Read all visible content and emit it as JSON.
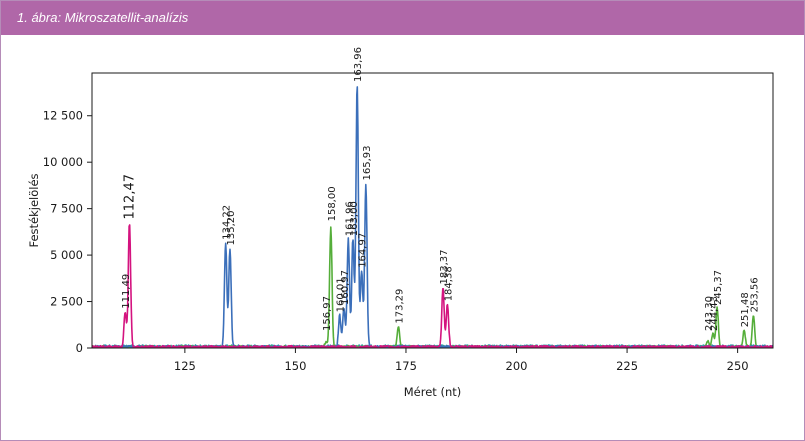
{
  "header": {
    "title": "1. ábra:  Mikroszatellit-analízis"
  },
  "colors": {
    "header_bg": "#b067a8",
    "blue": "#3b6fba",
    "green": "#55ae3a",
    "magenta": "#d4137f",
    "teal": "#2aa0a8"
  },
  "chart_data": {
    "type": "line",
    "xlabel": "Méret (nt)",
    "ylabel": "Festékjelölés",
    "xlim": [
      104,
      258
    ],
    "ylim": [
      0,
      14800
    ],
    "x_ticks": [
      125,
      150,
      175,
      200,
      225,
      250
    ],
    "x_tick_labels": [
      "125",
      "150",
      "175",
      "200",
      "225",
      "250"
    ],
    "y_ticks": [
      0,
      2500,
      5000,
      7500,
      10000,
      12500
    ],
    "y_tick_labels": [
      "0",
      "2 500",
      "5 000",
      "7 500",
      "10 000",
      "12 500"
    ],
    "grid": false,
    "legend": "none",
    "series": [
      {
        "color": "blue",
        "peaks": [
          {
            "x": 134.22,
            "y": 5600
          },
          {
            "x": 135.2,
            "y": 5300
          },
          {
            "x": 160.01,
            "y": 1700
          },
          {
            "x": 160.97,
            "y": 2100
          },
          {
            "x": 161.96,
            "y": 5800
          },
          {
            "x": 163.0,
            "y": 5800
          },
          {
            "x": 163.96,
            "y": 14100
          },
          {
            "x": 164.97,
            "y": 4100
          },
          {
            "x": 165.93,
            "y": 8800
          }
        ]
      },
      {
        "color": "green",
        "peaks": [
          {
            "x": 156.97,
            "y": 300
          },
          {
            "x": 158.0,
            "y": 6500
          },
          {
            "x": 173.29,
            "y": 1100
          },
          {
            "x": 243.3,
            "y": 300
          },
          {
            "x": 244.43,
            "y": 700
          },
          {
            "x": 245.37,
            "y": 2100
          },
          {
            "x": 251.48,
            "y": 900
          },
          {
            "x": 253.56,
            "y": 1700
          }
        ]
      },
      {
        "color": "magenta",
        "peaks": [
          {
            "x": 111.49,
            "y": 1900
          },
          {
            "x": 112.47,
            "y": 6700
          },
          {
            "x": 183.37,
            "y": 3200
          },
          {
            "x": 184.38,
            "y": 2300
          }
        ]
      },
      {
        "color": "teal",
        "peaks": []
      }
    ],
    "annotations": [
      {
        "text": "111,49",
        "x": 111.49,
        "y": 1900,
        "size": "small"
      },
      {
        "text": "112,47",
        "x": 112.47,
        "y": 6700,
        "size": "big"
      },
      {
        "text": "134,22",
        "x": 134.22,
        "y": 5600,
        "size": "small"
      },
      {
        "text": "135,20",
        "x": 135.2,
        "y": 5300,
        "size": "small"
      },
      {
        "text": "156,97",
        "x": 156.97,
        "y": 700,
        "size": "small"
      },
      {
        "text": "158,00",
        "x": 158.0,
        "y": 6600,
        "size": "small"
      },
      {
        "text": "160,01",
        "x": 160.01,
        "y": 1700,
        "size": "small"
      },
      {
        "text": "160,97",
        "x": 160.97,
        "y": 2100,
        "size": "small"
      },
      {
        "text": "161,96",
        "x": 161.96,
        "y": 5800,
        "size": "small"
      },
      {
        "text": "163,00",
        "x": 163.0,
        "y": 5800,
        "size": "small"
      },
      {
        "text": "163,96",
        "x": 163.96,
        "y": 14100,
        "size": "small"
      },
      {
        "text": "164,97",
        "x": 164.97,
        "y": 4100,
        "size": "small"
      },
      {
        "text": "165,93",
        "x": 165.93,
        "y": 8800,
        "size": "small"
      },
      {
        "text": "173,29",
        "x": 173.29,
        "y": 1100,
        "size": "small"
      },
      {
        "text": "183,37",
        "x": 183.37,
        "y": 3200,
        "size": "small"
      },
      {
        "text": "184,38",
        "x": 184.38,
        "y": 2300,
        "size": "small"
      },
      {
        "text": "243,30",
        "x": 243.3,
        "y": 700,
        "size": "small"
      },
      {
        "text": "244,43",
        "x": 244.43,
        "y": 700,
        "size": "small"
      },
      {
        "text": "245,37",
        "x": 245.37,
        "y": 2100,
        "size": "small"
      },
      {
        "text": "251,48",
        "x": 251.48,
        "y": 900,
        "size": "small"
      },
      {
        "text": "253,56",
        "x": 253.56,
        "y": 1700,
        "size": "small"
      }
    ]
  }
}
